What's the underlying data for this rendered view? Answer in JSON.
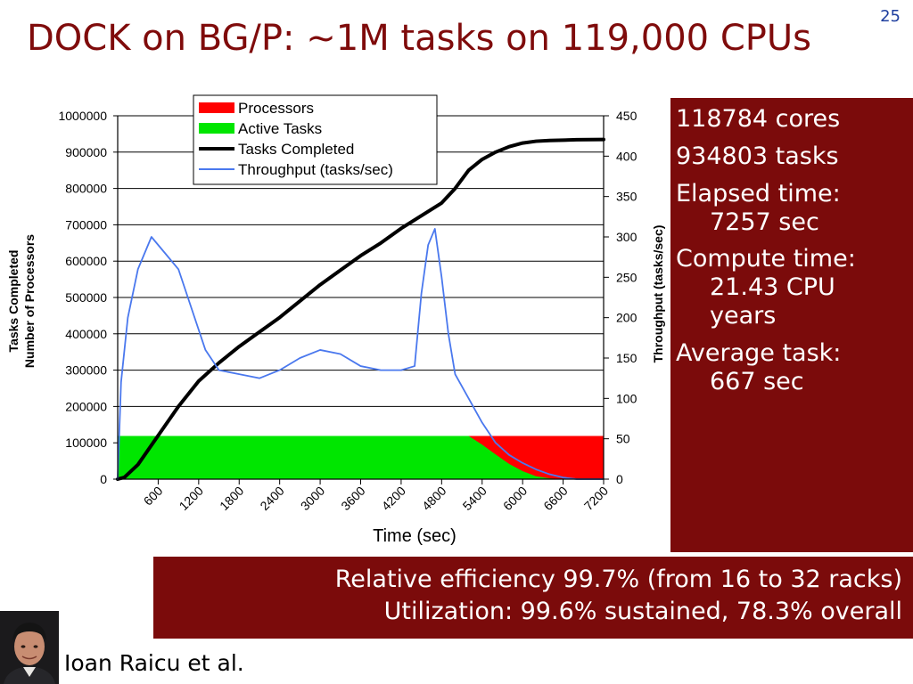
{
  "slide": {
    "title": "DOCK on BG/P: ~1M tasks on 119,000 CPUs",
    "number": "25",
    "author": "Ioan Raicu et al."
  },
  "stats": {
    "cores": "118784 cores",
    "tasks": "934803 tasks",
    "elapsed_label": "Elapsed time:",
    "elapsed_value": "7257 sec",
    "compute_label": "Compute time:",
    "compute_value_1": "21.43 CPU",
    "compute_value_2": "years",
    "avg_label": "Average task:",
    "avg_value": "667 sec"
  },
  "summary": {
    "line1": "Relative efficiency 99.7% (from 16 to 32 racks)",
    "line2": "Utilization: 99.6% sustained, 78.3% overall"
  },
  "colors": {
    "title": "#7f0b0b",
    "panel": "#7b0b0b",
    "processors": "#ff0000",
    "active_tasks": "#00e600",
    "tasks_completed": "#000000",
    "throughput": "#4a78ee",
    "slide_number": "#1f3f9f"
  },
  "chart_data": {
    "type": "area",
    "xlabel": "Time (sec)",
    "ylabel_left": [
      "Tasks Completed",
      "Number of Processors"
    ],
    "ylabel_right": "Throughput (tasks/sec)",
    "xlim": [
      0,
      7200
    ],
    "ylim_left": [
      0,
      1000000
    ],
    "ylim_right": [
      0,
      450
    ],
    "x_ticks": [
      600,
      1200,
      1800,
      2400,
      3000,
      3600,
      4200,
      4800,
      5400,
      6000,
      6600,
      7200
    ],
    "y_left_ticks": [
      0,
      100000,
      200000,
      300000,
      400000,
      500000,
      600000,
      700000,
      800000,
      900000,
      1000000
    ],
    "y_right_ticks": [
      0,
      50,
      100,
      150,
      200,
      250,
      300,
      350,
      400,
      450
    ],
    "grid": true,
    "legend_position": "top-center",
    "series": [
      {
        "name": "Processors",
        "kind": "area",
        "axis": "left",
        "x": [
          0,
          7200
        ],
        "y": [
          118784,
          118784
        ]
      },
      {
        "name": "Active Tasks",
        "kind": "area",
        "axis": "left",
        "x": [
          0,
          5200,
          5400,
          5600,
          5800,
          6000,
          6200,
          6400,
          6600
        ],
        "y": [
          118784,
          118784,
          95000,
          68000,
          42000,
          22000,
          8000,
          2000,
          0
        ]
      },
      {
        "name": "Tasks Completed",
        "kind": "line",
        "axis": "left",
        "x": [
          0,
          100,
          300,
          600,
          900,
          1200,
          1500,
          1800,
          2100,
          2400,
          2700,
          3000,
          3300,
          3600,
          3900,
          4200,
          4500,
          4800,
          5000,
          5200,
          5400,
          5600,
          5800,
          6000,
          6200,
          6400,
          6600,
          6800,
          7000,
          7200
        ],
        "y": [
          0,
          5000,
          40000,
          120000,
          200000,
          270000,
          320000,
          365000,
          405000,
          445000,
          490000,
          535000,
          575000,
          615000,
          650000,
          690000,
          725000,
          760000,
          800000,
          850000,
          880000,
          900000,
          915000,
          925000,
          930000,
          932000,
          933000,
          934000,
          934500,
          934803
        ]
      },
      {
        "name": "Throughput (tasks/sec)",
        "kind": "line",
        "axis": "right",
        "x": [
          0,
          50,
          150,
          300,
          500,
          700,
          900,
          1100,
          1300,
          1500,
          1800,
          2100,
          2400,
          2700,
          3000,
          3300,
          3600,
          3900,
          4200,
          4400,
          4500,
          4600,
          4700,
          4800,
          4900,
          5000,
          5200,
          5400,
          5600,
          5800,
          6000,
          6200,
          6400,
          6600,
          6800,
          7000,
          7200
        ],
        "y": [
          0,
          120,
          200,
          260,
          300,
          280,
          260,
          210,
          160,
          135,
          130,
          125,
          135,
          150,
          160,
          155,
          140,
          135,
          135,
          140,
          230,
          290,
          310,
          250,
          180,
          130,
          100,
          70,
          45,
          30,
          20,
          12,
          6,
          2,
          0,
          0,
          0
        ]
      }
    ]
  }
}
